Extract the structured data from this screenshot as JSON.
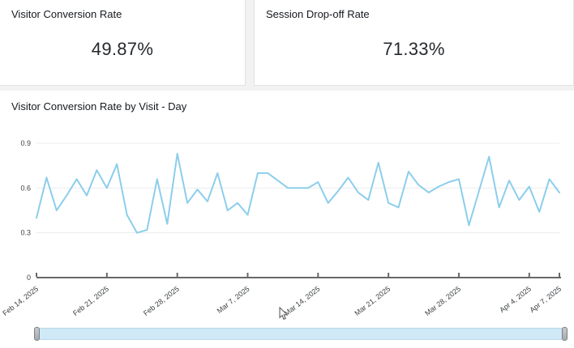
{
  "kpi_cards": [
    {
      "title": "Visitor Conversion Rate",
      "value": "49.87%"
    },
    {
      "title": "Session Drop-off Rate",
      "value": "71.33%"
    }
  ],
  "chart_data": {
    "type": "line",
    "title": "Visitor Conversion Rate by Visit - Day",
    "x_start": "Feb 14, 2025",
    "x_end": "Apr 7, 2025",
    "x_unit": "day",
    "x_tick_labels": [
      "Feb 14, 2025",
      "Feb 21, 2025",
      "Feb 28, 2025",
      "Mar 7, 2025",
      "Mar 14, 2025",
      "Mar 21, 2025",
      "Mar 28, 2025",
      "Apr 4, 2025",
      "Apr 7, 2025"
    ],
    "x_tick_days": [
      0,
      7,
      14,
      21,
      28,
      35,
      42,
      49,
      52
    ],
    "y_ticks": [
      0,
      0.3,
      0.6,
      0.9
    ],
    "ylim": [
      0,
      0.9
    ],
    "grid": true,
    "legend": "none",
    "line_color": "#8cceeb",
    "grid_color": "#ececec",
    "axis_color": "#67696b",
    "label_color": "#3b3f42",
    "series": [
      {
        "name": "Visitor Conversion Rate",
        "values": [
          0.4,
          0.67,
          0.45,
          0.55,
          0.66,
          0.55,
          0.72,
          0.6,
          0.76,
          0.42,
          0.3,
          0.32,
          0.66,
          0.36,
          0.83,
          0.5,
          0.59,
          0.51,
          0.7,
          0.45,
          0.5,
          0.42,
          0.7,
          0.7,
          0.65,
          0.6,
          0.6,
          0.6,
          0.64,
          0.5,
          0.58,
          0.67,
          0.57,
          0.52,
          0.77,
          0.5,
          0.47,
          0.71,
          0.62,
          0.57,
          0.61,
          0.64,
          0.66,
          0.35,
          0.58,
          0.81,
          0.47,
          0.65,
          0.52,
          0.61,
          0.44,
          0.66,
          0.57
        ]
      }
    ]
  }
}
